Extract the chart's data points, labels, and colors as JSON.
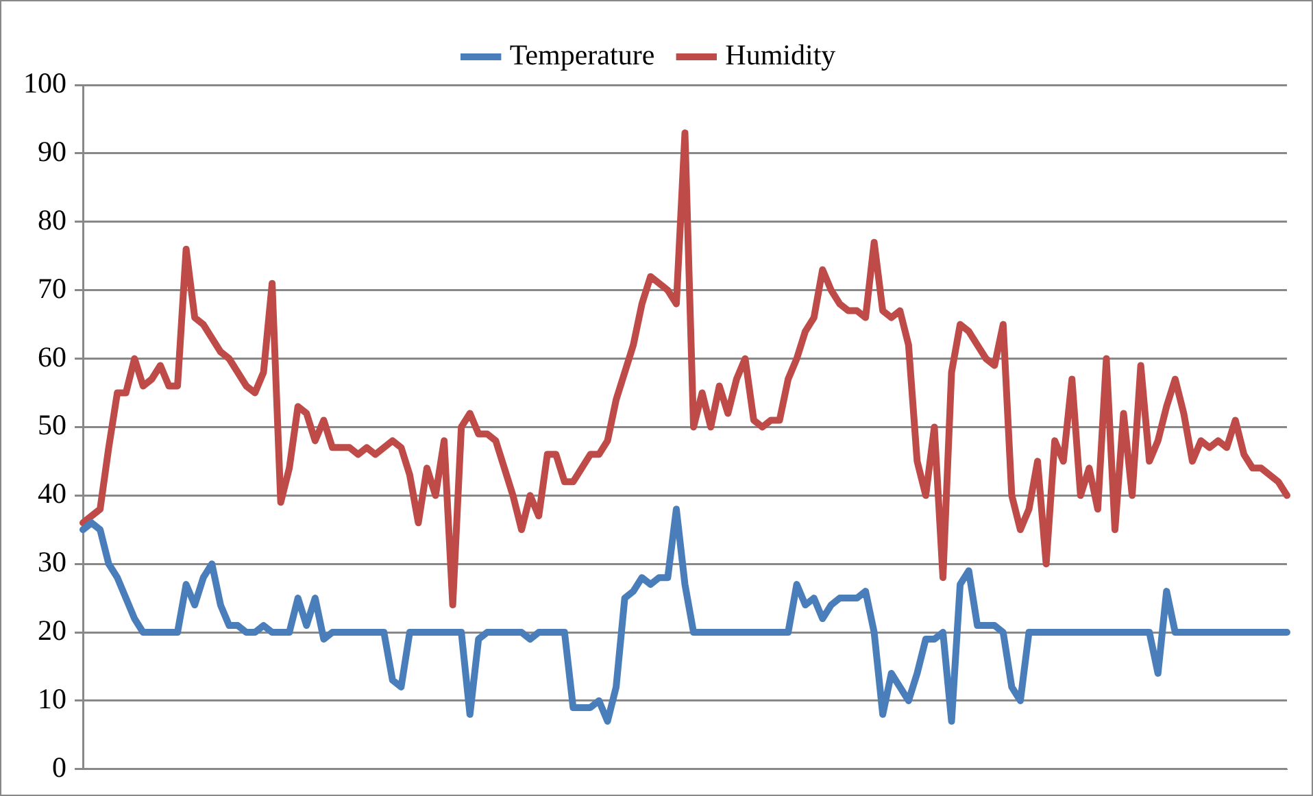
{
  "chart_data": {
    "type": "line",
    "categories": [
      null,
      null,
      null,
      null,
      null,
      null,
      null,
      null,
      null,
      null,
      null,
      null,
      null,
      null,
      null,
      null,
      null,
      null,
      null,
      null,
      null,
      null,
      null,
      null,
      null,
      null,
      null,
      null,
      null,
      null,
      null,
      null,
      null,
      null,
      null,
      null,
      null,
      null,
      null,
      null,
      null,
      null,
      null,
      null,
      null,
      null,
      null,
      null,
      null,
      null,
      null,
      null,
      null,
      null,
      null,
      null,
      null,
      null,
      null,
      null,
      null,
      null,
      null,
      null,
      null,
      null,
      null,
      null,
      null,
      null,
      null,
      null,
      null,
      null,
      null,
      null,
      null,
      null,
      null,
      null,
      null,
      null,
      null,
      null,
      null,
      null,
      null,
      null,
      null,
      null,
      null,
      null,
      null,
      null,
      null,
      null,
      null,
      null,
      null,
      null,
      null,
      null,
      null,
      null,
      null,
      null,
      null,
      null,
      null,
      null,
      null,
      null,
      null,
      null,
      null,
      null,
      null,
      null,
      null,
      null,
      null,
      null,
      null,
      null,
      null,
      null,
      null,
      null,
      null,
      null,
      null,
      null,
      null,
      null,
      null,
      null,
      null,
      null,
      null,
      null,
      null
    ],
    "series": [
      {
        "name": "Temperature",
        "color": "#4a7ebb",
        "values": [
          35,
          36,
          35,
          30,
          28,
          25,
          22,
          20,
          20,
          20,
          20,
          20,
          27,
          24,
          28,
          30,
          24,
          21,
          21,
          20,
          20,
          21,
          20,
          20,
          20,
          25,
          21,
          25,
          19,
          20,
          20,
          20,
          20,
          20,
          20,
          20,
          13,
          12,
          20,
          20,
          20,
          20,
          20,
          20,
          20,
          8,
          19,
          20,
          20,
          20,
          20,
          20,
          19,
          20,
          20,
          20,
          20,
          9,
          9,
          9,
          10,
          7,
          12,
          25,
          26,
          28,
          27,
          28,
          28,
          38,
          27,
          20,
          20,
          20,
          20,
          20,
          20,
          20,
          20,
          20,
          20,
          20,
          20,
          27,
          24,
          25,
          22,
          24,
          25,
          25,
          25,
          26,
          20,
          8,
          14,
          12,
          10,
          14,
          19,
          19,
          20,
          7,
          27,
          29,
          21,
          21,
          21,
          20,
          12,
          10,
          20,
          20,
          20,
          20,
          20,
          20,
          20,
          20,
          20,
          20,
          20,
          20,
          20,
          20,
          20,
          14,
          26,
          20,
          20,
          20,
          20,
          20,
          20,
          20,
          20,
          20,
          20,
          20,
          20,
          20,
          20
        ]
      },
      {
        "name": "Humidity",
        "color": "#be4b48",
        "values": [
          36,
          37,
          38,
          47,
          55,
          55,
          60,
          56,
          57,
          59,
          56,
          56,
          76,
          66,
          65,
          63,
          61,
          60,
          58,
          56,
          55,
          58,
          71,
          39,
          44,
          53,
          52,
          48,
          51,
          47,
          47,
          47,
          46,
          47,
          46,
          47,
          48,
          47,
          43,
          36,
          44,
          40,
          48,
          24,
          50,
          52,
          49,
          49,
          48,
          44,
          40,
          35,
          40,
          37,
          46,
          46,
          42,
          42,
          44,
          46,
          46,
          48,
          54,
          58,
          62,
          68,
          72,
          71,
          70,
          68,
          93,
          50,
          55,
          50,
          56,
          52,
          57,
          60,
          51,
          50,
          51,
          51,
          57,
          60,
          64,
          66,
          73,
          70,
          68,
          67,
          67,
          66,
          77,
          67,
          66,
          67,
          62,
          45,
          40,
          50,
          28,
          58,
          65,
          64,
          62,
          60,
          59,
          65,
          40,
          35,
          38,
          45,
          30,
          48,
          45,
          57,
          40,
          44,
          38,
          60,
          35,
          52,
          40,
          59,
          45,
          48,
          53,
          57,
          52,
          45,
          48,
          47,
          48,
          47,
          51,
          46,
          44,
          44,
          43,
          42,
          40
        ]
      }
    ],
    "ylim": [
      0,
      100
    ],
    "yticks": [
      0,
      10,
      20,
      30,
      40,
      50,
      60,
      70,
      80,
      90,
      100
    ],
    "grid": "y",
    "legend": "top",
    "tick_labels": "y",
    "marker": "none",
    "line_style": "solid"
  }
}
